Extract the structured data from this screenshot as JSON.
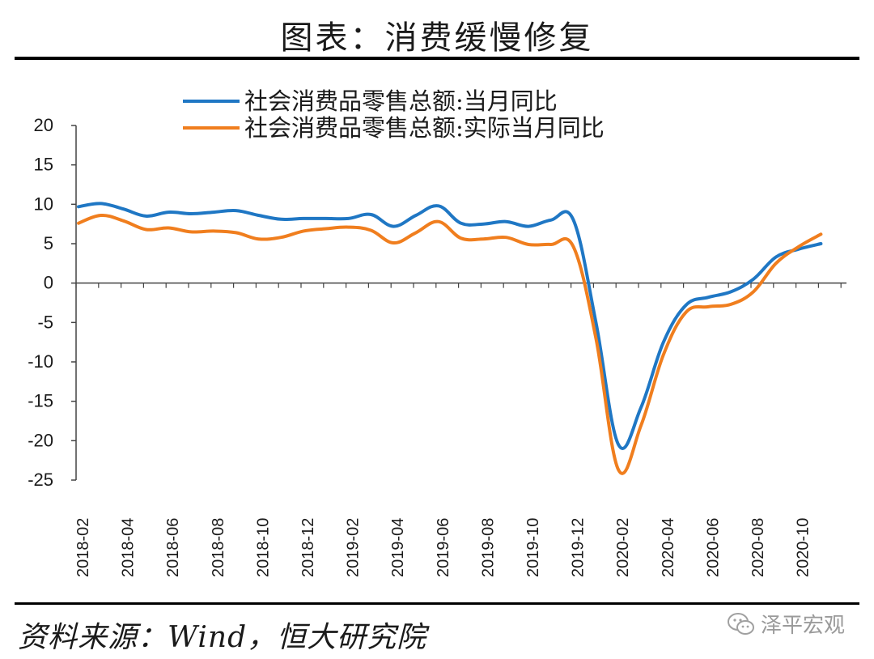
{
  "header": {
    "title": "图表：消费缓慢修复"
  },
  "footer": {
    "source": "资料来源：Wind，恒大研究院",
    "watermark": "泽平宏观"
  },
  "colors": {
    "series1": "#1f77c4",
    "series2": "#f07e1e",
    "axis": "#444444"
  },
  "chart_data": {
    "type": "line",
    "title": "",
    "xlabel": "",
    "ylabel": "",
    "ylim": [
      -25,
      20
    ],
    "yticks": [
      20,
      15,
      10,
      5,
      0,
      -5,
      -10,
      -15,
      -20,
      -25
    ],
    "yticks_text": [
      "20",
      "15",
      "10",
      "5",
      "0",
      "-5",
      "-10",
      "-15",
      "-20",
      "-25"
    ],
    "grid": false,
    "legend_position": "top",
    "x": [
      "2018-02",
      "2018-03",
      "2018-04",
      "2018-05",
      "2018-06",
      "2018-07",
      "2018-08",
      "2018-09",
      "2018-10",
      "2018-11",
      "2018-12",
      "2019-01",
      "2019-02",
      "2019-03",
      "2019-04",
      "2019-05",
      "2019-06",
      "2019-07",
      "2019-08",
      "2019-09",
      "2019-10",
      "2019-11",
      "2019-12",
      "2020-01",
      "2020-02",
      "2020-03",
      "2020-04",
      "2020-05",
      "2020-06",
      "2020-07",
      "2020-08",
      "2020-09",
      "2020-10",
      "2020-11"
    ],
    "xtick_labels": [
      "2018-02",
      "2018-04",
      "2018-06",
      "2018-08",
      "2018-10",
      "2018-12",
      "2019-02",
      "2019-04",
      "2019-06",
      "2019-08",
      "2019-10",
      "2019-12",
      "2020-02",
      "2020-04",
      "2020-06",
      "2020-08",
      "2020-10"
    ],
    "series": [
      {
        "name": "社会消费品零售总额:当月同比",
        "values": [
          9.7,
          10.1,
          9.4,
          8.5,
          9.0,
          8.8,
          9.0,
          9.2,
          8.6,
          8.1,
          8.2,
          8.2,
          8.2,
          8.7,
          7.2,
          8.6,
          9.8,
          7.6,
          7.5,
          7.8,
          7.2,
          8.0,
          8.0,
          -5.0,
          -20.5,
          -15.8,
          -7.5,
          -2.8,
          -1.8,
          -1.1,
          0.5,
          3.3,
          4.3,
          5.0
        ]
      },
      {
        "name": "社会消费品零售总额:实际当月同比",
        "values": [
          7.6,
          8.6,
          7.9,
          6.8,
          7.0,
          6.5,
          6.6,
          6.4,
          5.6,
          5.8,
          6.6,
          6.9,
          7.1,
          6.7,
          5.1,
          6.4,
          7.8,
          5.7,
          5.6,
          5.8,
          4.9,
          4.9,
          4.6,
          -7.0,
          -23.7,
          -18.1,
          -9.1,
          -3.7,
          -3.0,
          -2.7,
          -1.1,
          2.5,
          4.6,
          6.2
        ]
      }
    ]
  }
}
